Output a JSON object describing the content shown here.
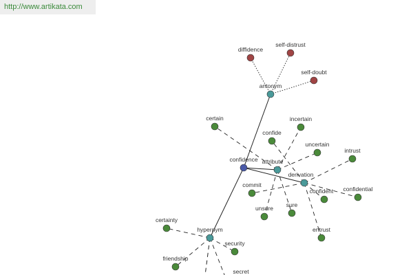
{
  "header": {
    "url": "http://www.artikata.com"
  },
  "graph": {
    "nodes": [
      {
        "label": "confidence"
      },
      {
        "label": "antonym"
      },
      {
        "label": "attribute"
      },
      {
        "label": "derivation"
      },
      {
        "label": "hypernym"
      },
      {
        "label": "diffidence"
      },
      {
        "label": "self-distrust"
      },
      {
        "label": "self-doubt"
      },
      {
        "label": "certain"
      },
      {
        "label": "incertain"
      },
      {
        "label": "confide"
      },
      {
        "label": "uncertain"
      },
      {
        "label": "intrust"
      },
      {
        "label": "commit"
      },
      {
        "label": "confident"
      },
      {
        "label": "confidential"
      },
      {
        "label": "unsure"
      },
      {
        "label": "sure"
      },
      {
        "label": "entrust"
      },
      {
        "label": "certainty"
      },
      {
        "label": "security"
      },
      {
        "label": "friendship"
      },
      {
        "label": "secret"
      }
    ]
  }
}
